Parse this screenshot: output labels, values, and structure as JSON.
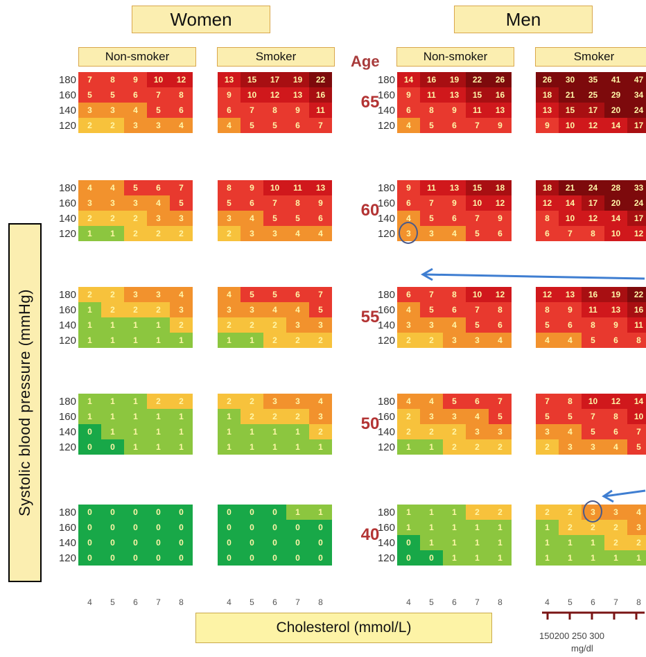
{
  "chart_data": {
    "type": "heatmap",
    "gender_labels": [
      "Women",
      "Men"
    ],
    "smoking_labels": [
      "Non-smoker",
      "Smoker"
    ],
    "age_header": "Age",
    "ages": [
      "65",
      "60",
      "55",
      "50",
      "40"
    ],
    "bp_ticks": [
      "180",
      "160",
      "140",
      "120"
    ],
    "cholesterol_ticks": [
      "4",
      "5",
      "6",
      "7",
      "8"
    ],
    "xlabel": "Cholesterol (mmol/L)",
    "ylabel": "Systolic blood pressure (mmHg)",
    "mgdl_ticks": "150200 250 300",
    "mgdl_unit": "mg/dl",
    "panels": {
      "women_nonsmoker": [
        [
          [
            7,
            8,
            9,
            10,
            12
          ],
          [
            5,
            5,
            6,
            7,
            8
          ],
          [
            3,
            3,
            4,
            5,
            6
          ],
          [
            2,
            2,
            3,
            3,
            4
          ]
        ],
        [
          [
            4,
            4,
            5,
            6,
            7
          ],
          [
            3,
            3,
            3,
            4,
            5
          ],
          [
            2,
            2,
            2,
            3,
            3
          ],
          [
            1,
            1,
            2,
            2,
            2
          ]
        ],
        [
          [
            2,
            2,
            3,
            3,
            4
          ],
          [
            1,
            2,
            2,
            2,
            3
          ],
          [
            1,
            1,
            1,
            1,
            2
          ],
          [
            1,
            1,
            1,
            1,
            1
          ]
        ],
        [
          [
            1,
            1,
            1,
            2,
            2
          ],
          [
            1,
            1,
            1,
            1,
            1
          ],
          [
            0,
            1,
            1,
            1,
            1
          ],
          [
            0,
            0,
            1,
            1,
            1
          ]
        ],
        [
          [
            0,
            0,
            0,
            0,
            0
          ],
          [
            0,
            0,
            0,
            0,
            0
          ],
          [
            0,
            0,
            0,
            0,
            0
          ],
          [
            0,
            0,
            0,
            0,
            0
          ]
        ]
      ],
      "women_smoker": [
        [
          [
            13,
            15,
            17,
            19,
            22
          ],
          [
            9,
            10,
            12,
            13,
            16
          ],
          [
            6,
            7,
            8,
            9,
            11
          ],
          [
            4,
            5,
            5,
            6,
            7
          ]
        ],
        [
          [
            8,
            9,
            10,
            11,
            13
          ],
          [
            5,
            6,
            7,
            8,
            9
          ],
          [
            3,
            4,
            5,
            5,
            6
          ],
          [
            2,
            3,
            3,
            4,
            4
          ]
        ],
        [
          [
            4,
            5,
            5,
            6,
            7
          ],
          [
            3,
            3,
            4,
            4,
            5
          ],
          [
            2,
            2,
            2,
            3,
            3
          ],
          [
            1,
            1,
            2,
            2,
            2
          ]
        ],
        [
          [
            2,
            2,
            3,
            3,
            4
          ],
          [
            1,
            2,
            2,
            2,
            3
          ],
          [
            1,
            1,
            1,
            1,
            2
          ],
          [
            1,
            1,
            1,
            1,
            1
          ]
        ],
        [
          [
            0,
            0,
            0,
            1,
            1
          ],
          [
            0,
            0,
            0,
            0,
            0
          ],
          [
            0,
            0,
            0,
            0,
            0
          ],
          [
            0,
            0,
            0,
            0,
            0
          ]
        ]
      ],
      "men_nonsmoker": [
        [
          [
            14,
            16,
            19,
            22,
            26
          ],
          [
            9,
            11,
            13,
            15,
            16
          ],
          [
            6,
            8,
            9,
            11,
            13
          ],
          [
            4,
            5,
            6,
            7,
            9
          ]
        ],
        [
          [
            9,
            11,
            13,
            15,
            18
          ],
          [
            6,
            7,
            9,
            10,
            12
          ],
          [
            4,
            5,
            6,
            7,
            9
          ],
          [
            3,
            3,
            4,
            5,
            6
          ]
        ],
        [
          [
            6,
            7,
            8,
            10,
            12
          ],
          [
            4,
            5,
            6,
            7,
            8
          ],
          [
            3,
            3,
            4,
            5,
            6
          ],
          [
            2,
            2,
            3,
            3,
            4
          ]
        ],
        [
          [
            4,
            4,
            5,
            6,
            7
          ],
          [
            2,
            3,
            3,
            4,
            5
          ],
          [
            2,
            2,
            2,
            3,
            3
          ],
          [
            1,
            1,
            2,
            2,
            2
          ]
        ],
        [
          [
            1,
            1,
            1,
            2,
            2
          ],
          [
            1,
            1,
            1,
            1,
            1
          ],
          [
            0,
            1,
            1,
            1,
            1
          ],
          [
            0,
            0,
            1,
            1,
            1
          ]
        ]
      ],
      "men_smoker": [
        [
          [
            26,
            30,
            35,
            41,
            47
          ],
          [
            18,
            21,
            25,
            29,
            34
          ],
          [
            13,
            15,
            17,
            20,
            24
          ],
          [
            9,
            10,
            12,
            14,
            17
          ]
        ],
        [
          [
            18,
            21,
            24,
            28,
            33
          ],
          [
            12,
            14,
            17,
            20,
            24
          ],
          [
            8,
            10,
            12,
            14,
            17
          ],
          [
            6,
            7,
            8,
            10,
            12
          ]
        ],
        [
          [
            12,
            13,
            16,
            19,
            22
          ],
          [
            8,
            9,
            11,
            13,
            16
          ],
          [
            5,
            6,
            8,
            9,
            11
          ],
          [
            4,
            4,
            5,
            6,
            8
          ]
        ],
        [
          [
            7,
            8,
            10,
            12,
            14
          ],
          [
            5,
            5,
            7,
            8,
            10
          ],
          [
            3,
            4,
            5,
            6,
            7
          ],
          [
            2,
            3,
            3,
            4,
            5
          ]
        ],
        [
          [
            2,
            2,
            3,
            3,
            4
          ],
          [
            1,
            2,
            2,
            2,
            3
          ],
          [
            1,
            1,
            1,
            2,
            2
          ],
          [
            1,
            1,
            1,
            1,
            1
          ]
        ]
      ]
    },
    "highlighted": [
      {
        "panel": "men_nonsmoker",
        "age": "60",
        "bp": "120",
        "cholesterol": "4",
        "value": 3
      },
      {
        "panel": "men_smoker",
        "age": "40",
        "bp": "180",
        "cholesterol": "6",
        "value": 3
      }
    ]
  },
  "colors": {
    "dark_green": "#18a848",
    "green": "#8cc63f",
    "yellow": "#f7c23c",
    "orange": "#f2922d",
    "light_red": "#e8392e",
    "red": "#d0181c",
    "dark_red": "#a80f12",
    "darkest_red": "#7d0a0c",
    "arrow": "#3f7ed1"
  }
}
